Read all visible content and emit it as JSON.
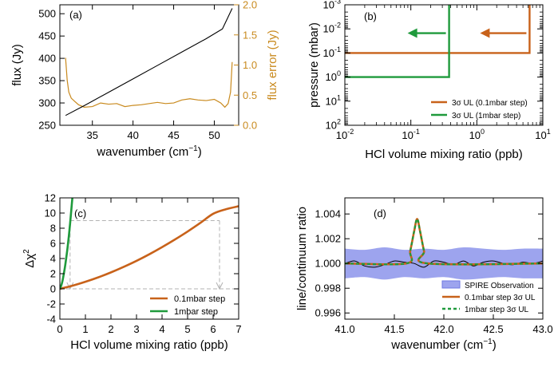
{
  "colors": {
    "black": "#000000",
    "orange": "#c8621a",
    "green": "#1f9a3c",
    "flux_error": "#c98a1e",
    "spire_band": "#9da4ee",
    "spire_edge": "#6f78e3",
    "dashed": "#b3b3b3"
  },
  "chart_data": [
    {
      "id": "a",
      "type": "line",
      "panel_label": "(a)",
      "xlabel": "wavenumber (cm",
      "xlabel_sup": "−1",
      "xlabel_end": ")",
      "ylabel": "flux (Jy)",
      "y2label": "flux error (Jy)",
      "xlim": [
        31,
        53
      ],
      "ylim": [
        250,
        520
      ],
      "y2lim": [
        0,
        2.0
      ],
      "xticks": [
        35,
        40,
        45,
        50
      ],
      "yticks": [
        250,
        300,
        350,
        400,
        450,
        500
      ],
      "y2ticks": [
        "0.0",
        "0.5",
        "1.0",
        "1.5",
        "2.0"
      ],
      "series": [
        {
          "axis": "left",
          "x": [
            31.7,
            34,
            37,
            40,
            43,
            46,
            49,
            51,
            52.2
          ],
          "values": [
            272,
            294,
            324,
            354,
            384,
            414,
            444,
            466,
            512
          ]
        },
        {
          "axis": "right",
          "x": [
            31.7,
            31.9,
            32.1,
            32.4,
            32.8,
            33.3,
            34,
            35,
            36,
            37,
            38,
            39,
            40,
            41,
            42,
            43,
            44,
            45,
            46,
            47,
            48,
            49,
            50,
            50.8,
            51.3,
            51.7,
            52,
            52.1,
            52.2
          ],
          "values": [
            1.12,
            0.75,
            0.55,
            0.45,
            0.4,
            0.34,
            0.3,
            0.31,
            0.37,
            0.35,
            0.36,
            0.31,
            0.33,
            0.34,
            0.36,
            0.38,
            0.36,
            0.37,
            0.42,
            0.44,
            0.42,
            0.41,
            0.43,
            0.37,
            0.3,
            0.36,
            0.55,
            0.8,
            1.05
          ]
        }
      ]
    },
    {
      "id": "b",
      "type": "line",
      "panel_label": "(b)",
      "xlabel": "HCl volume mixing ratio (ppb)",
      "ylabel": "pressure (mbar)",
      "xscale": "log",
      "yscale": "log",
      "xlim": [
        0.01,
        10
      ],
      "ylim": [
        100,
        0.001
      ],
      "xtick_exponents": [
        "-2",
        "-1",
        "0",
        "1"
      ],
      "ytick_exponents": [
        "-3",
        "-2",
        "-1",
        "0",
        "1",
        "2"
      ],
      "series": [
        {
          "name": "3σ UL (0.1mbar step)",
          "color": "orange",
          "x": [
            0.01,
            6.3,
            6.3
          ],
          "values": [
            0.1,
            0.1,
            0.001
          ]
        },
        {
          "name": "3σ UL (1mbar step)",
          "color": "green",
          "x": [
            0.01,
            0.38,
            0.38
          ],
          "values": [
            1,
            1,
            0.001
          ]
        }
      ],
      "legend": "bottom-right"
    },
    {
      "id": "c",
      "type": "line",
      "panel_label": "(c)",
      "xlabel": "HCl volume mixing ratio (ppb)",
      "ylabel": "Δχ",
      "ylabel_sup": "2",
      "xlim": [
        0,
        7
      ],
      "ylim": [
        -4,
        12
      ],
      "xticks": [
        0,
        1,
        2,
        3,
        4,
        5,
        6,
        7
      ],
      "yticks": [
        -4,
        -2,
        0,
        2,
        4,
        6,
        8,
        10,
        12
      ],
      "threshold": 9,
      "series": [
        {
          "name": "0.1mbar step",
          "color": "orange",
          "x": [
            0,
            0.5,
            1,
            1.5,
            2,
            2.5,
            3,
            3.5,
            4,
            4.5,
            5,
            5.5,
            6,
            6.5,
            7
          ],
          "values": [
            0,
            0.42,
            0.93,
            1.51,
            2.17,
            2.9,
            3.69,
            4.56,
            5.5,
            6.5,
            7.56,
            8.7,
            9.9,
            10.5,
            10.9
          ]
        },
        {
          "name": "1mbar step",
          "color": "green",
          "x": [
            0,
            0.05,
            0.1,
            0.15,
            0.2,
            0.25,
            0.3,
            0.35,
            0.4,
            0.45,
            0.5
          ],
          "values": [
            0,
            0.4,
            1.0,
            1.9,
            2.9,
            4.1,
            5.4,
            6.9,
            8.6,
            10.5,
            12.5
          ]
        }
      ],
      "legend": "bottom-right"
    },
    {
      "id": "d",
      "type": "line",
      "panel_label": "(d)",
      "xlabel": "wavenumber (cm",
      "xlabel_sup": "−1",
      "xlabel_end": ")",
      "ylabel": "line/continuum ratio",
      "xlim": [
        41,
        43
      ],
      "ylim": [
        0.9955,
        1.0053
      ],
      "xticks": [
        "41.0",
        "41.5",
        "42.0",
        "42.5",
        "43.0"
      ],
      "yticks": [
        "0.996",
        "0.998",
        "1.000",
        "1.002",
        "1.004"
      ],
      "band": {
        "name": "SPIRE Observation",
        "x": [
          41.0,
          41.2,
          41.4,
          41.6,
          41.8,
          42.0,
          42.2,
          42.4,
          42.6,
          42.8,
          43.0
        ],
        "upper": [
          1.0012,
          1.0011,
          1.0013,
          1.0011,
          1.0012,
          1.0011,
          1.0013,
          1.0012,
          1.0011,
          1.0012,
          1.0012
        ],
        "lower": [
          0.9988,
          0.9989,
          0.9987,
          0.9989,
          0.9988,
          0.9989,
          0.9987,
          0.9988,
          0.9989,
          0.9988,
          0.9988
        ]
      },
      "observed": {
        "x": [
          41.0,
          41.1,
          41.2,
          41.3,
          41.4,
          41.5,
          41.6,
          41.7,
          41.8,
          41.9,
          42.0,
          42.1,
          42.2,
          42.3,
          42.4,
          42.5,
          42.6,
          42.7,
          42.8,
          42.9,
          43.0
        ],
        "values": [
          1.0,
          1.0002,
          0.9998,
          0.9997,
          0.9999,
          1.0002,
          1.0001,
          1.0,
          0.9997,
          1.0002,
          1.0001,
          0.9999,
          1.0002,
          0.9998,
          1.0001,
          1.0002,
          1.0,
          0.9999,
          1.0001,
          1.0,
          1.0002
        ]
      },
      "series": [
        {
          "name": "0.1mbar step 3σ UL",
          "color": "orange",
          "x": [
            41.0,
            41.62,
            41.66,
            41.7,
            41.73,
            41.76,
            41.8,
            41.84,
            43.0
          ],
          "values": [
            1.0,
            1.0,
            1.001,
            1.0026,
            1.0036,
            1.0026,
            1.001,
            1.0,
            1.0
          ]
        },
        {
          "name": "1mbar step 3σ UL",
          "color": "green",
          "x": [
            41.0,
            41.62,
            41.66,
            41.7,
            41.73,
            41.76,
            41.8,
            41.84,
            43.0
          ],
          "values": [
            1.0,
            1.0,
            1.001,
            1.0026,
            1.0036,
            1.0026,
            1.001,
            1.0,
            1.0
          ]
        }
      ],
      "legend": "bottom-right"
    }
  ]
}
